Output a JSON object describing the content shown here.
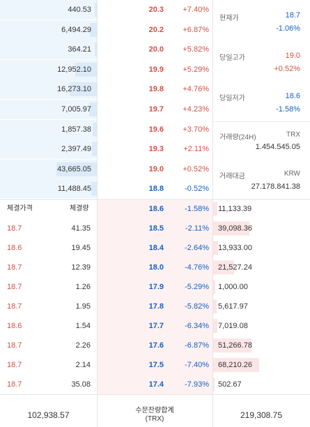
{
  "asks": [
    {
      "volume": "440.53",
      "price": "20.3",
      "pct": "+7.40%",
      "bar": 0.02
    },
    {
      "volume": "6,494.29",
      "price": "20.2",
      "pct": "+6.87%",
      "bar": 0.07
    },
    {
      "volume": "364.21",
      "price": "20.0",
      "pct": "+5.82%",
      "bar": 0.02
    },
    {
      "volume": "12,952.10",
      "price": "19.9",
      "pct": "+5.29%",
      "bar": 0.22
    },
    {
      "volume": "16,273.10",
      "price": "19.8",
      "pct": "+4.76%",
      "bar": 0.28
    },
    {
      "volume": "7,005.97",
      "price": "19.7",
      "pct": "+4.23%",
      "bar": 0.08
    },
    {
      "volume": "1,857.38",
      "price": "19.6",
      "pct": "+3.70%",
      "bar": 0.04
    },
    {
      "volume": "2,397.49",
      "price": "19.3",
      "pct": "+2.11%",
      "bar": 0.05
    },
    {
      "volume": "43,665.05",
      "price": "19.0",
      "pct": "+0.52%",
      "bar": 0.42
    },
    {
      "volume": "11,488.45",
      "price": "18.8",
      "pct": "-0.52%",
      "bar": 0.06
    }
  ],
  "bids": [
    {
      "price": "18.6",
      "pct": "-1.58%",
      "amount": "11,133.39",
      "bar": 0.05
    },
    {
      "price": "18.5",
      "pct": "-2.11%",
      "amount": "39,098.36",
      "bar": 0.38
    },
    {
      "price": "18.4",
      "pct": "-2.64%",
      "amount": "13,933.00",
      "bar": 0.06
    },
    {
      "price": "18.0",
      "pct": "-4.76%",
      "amount": "21,527.24",
      "bar": 0.22
    },
    {
      "price": "17.9",
      "pct": "-5.29%",
      "amount": "1,000.00",
      "bar": 0.03
    },
    {
      "price": "17.8",
      "pct": "-5.82%",
      "amount": "5,617.97",
      "bar": 0.04
    },
    {
      "price": "17.7",
      "pct": "-6.34%",
      "amount": "7,019.08",
      "bar": 0.05
    },
    {
      "price": "17.6",
      "pct": "-6.87%",
      "amount": "51,266.78",
      "bar": 0.4
    },
    {
      "price": "17.5",
      "pct": "-7.40%",
      "amount": "68,210.26",
      "bar": 0.48
    },
    {
      "price": "17.4",
      "pct": "-7.93%",
      "amount": "502.67",
      "bar": 0.02
    }
  ],
  "trades_header": {
    "price": "체결가격",
    "volume": "체결량"
  },
  "trades": [
    {
      "price": "18.7",
      "volume": "41.35"
    },
    {
      "price": "18.6",
      "volume": "19.45"
    },
    {
      "price": "18.7",
      "volume": "12.39"
    },
    {
      "price": "18.7",
      "volume": "1.26"
    },
    {
      "price": "18.7",
      "volume": "1.95"
    },
    {
      "price": "18.6",
      "volume": "1.54"
    },
    {
      "price": "18.7",
      "volume": "2.26"
    },
    {
      "price": "18.7",
      "volume": "2.14"
    },
    {
      "price": "18.7",
      "volume": "35.08"
    }
  ],
  "info": {
    "current_label": "현재가",
    "current_value": "18.7",
    "current_pct": "-1.06%",
    "high_label": "당일고가",
    "high_value": "19.0",
    "high_pct": "+0.52%",
    "low_label": "당일저가",
    "low_value": "18.6",
    "low_pct": "-1.58%",
    "volume_label": "거래량(24H)",
    "volume_unit": "TRX",
    "volume_value": "1.454.545.05",
    "amount_label": "거래대금",
    "amount_unit": "KRW",
    "amount_value": "27.178.841.38"
  },
  "footer": {
    "ask_total": "102,938.57",
    "label_line1": "수문잔량합계",
    "label_line2": "(TRX)",
    "bid_total": "219,308.75"
  },
  "colors": {
    "up": "#d24f45",
    "down": "#1261c4",
    "ask_bg": "#eef6fd",
    "bid_bg": "#fdf1f2"
  }
}
